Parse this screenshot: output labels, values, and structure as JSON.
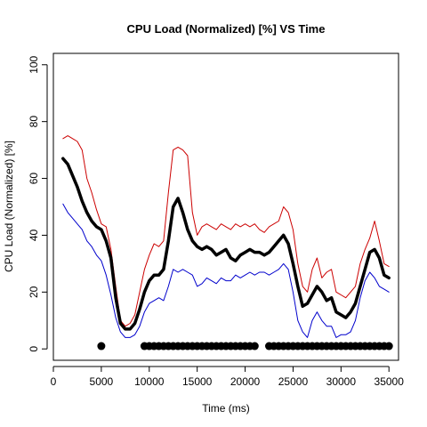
{
  "chart_data": {
    "type": "line",
    "title": "CPU Load (Normalized) [%]  VS  Time",
    "xlabel": "Time (ms)",
    "ylabel": "CPU Load (Normalized) [%]",
    "xlim": [
      0,
      36000
    ],
    "ylim": [
      -4,
      104
    ],
    "xticks": [
      0,
      5000,
      10000,
      15000,
      20000,
      25000,
      30000,
      35000
    ],
    "yticks": [
      0,
      20,
      40,
      60,
      80,
      100
    ],
    "grid": false,
    "legend": "none",
    "series": [
      {
        "color": "#cc0000",
        "style": "thin",
        "x": [
          1000,
          1500,
          2000,
          2500,
          3000,
          3500,
          4000,
          4500,
          5000,
          5500,
          6000,
          6500,
          7000,
          7500,
          8000,
          8500,
          9000,
          9500,
          10000,
          10500,
          11000,
          11500,
          12000,
          12500,
          13000,
          13500,
          14000,
          14500,
          15000,
          15500,
          16000,
          16500,
          17000,
          17500,
          18000,
          18500,
          19000,
          19500,
          20000,
          20500,
          21000,
          21500,
          22000,
          22500,
          23000,
          23500,
          24000,
          24500,
          25000,
          25500,
          26000,
          26500,
          27000,
          27500,
          28000,
          28500,
          29000,
          29500,
          30000,
          30500,
          31000,
          31500,
          32000,
          32500,
          33000,
          33500,
          34000,
          34500,
          35000
        ],
        "y": [
          74,
          75,
          74,
          73,
          70,
          60,
          55,
          49,
          44,
          43,
          35,
          22,
          10,
          8,
          9,
          12,
          20,
          28,
          33,
          37,
          36,
          38,
          55,
          70,
          71,
          70,
          68,
          48,
          40,
          43,
          44,
          43,
          42,
          44,
          43,
          42,
          44,
          43,
          44,
          43,
          44,
          42,
          41,
          43,
          44,
          45,
          50,
          48,
          42,
          30,
          22,
          20,
          28,
          32,
          25,
          27,
          28,
          20,
          19,
          18,
          20,
          22,
          30,
          35,
          39,
          45,
          38,
          30,
          29
        ]
      },
      {
        "color": "#0000cc",
        "style": "thin",
        "x": [
          1000,
          1500,
          2000,
          2500,
          3000,
          3500,
          4000,
          4500,
          5000,
          5500,
          6000,
          6500,
          7000,
          7500,
          8000,
          8500,
          9000,
          9500,
          10000,
          10500,
          11000,
          11500,
          12000,
          12500,
          13000,
          13500,
          14000,
          14500,
          15000,
          15500,
          16000,
          16500,
          17000,
          17500,
          18000,
          18500,
          19000,
          19500,
          20000,
          20500,
          21000,
          21500,
          22000,
          22500,
          23000,
          23500,
          24000,
          24500,
          25000,
          25500,
          26000,
          26500,
          27000,
          27500,
          28000,
          28500,
          29000,
          29500,
          30000,
          30500,
          31000,
          31500,
          32000,
          32500,
          33000,
          33500,
          34000,
          34500,
          35000
        ],
        "y": [
          51,
          48,
          46,
          44,
          42,
          38,
          36,
          33,
          31,
          26,
          19,
          11,
          6,
          4,
          4,
          5,
          8,
          13,
          16,
          17,
          18,
          17,
          22,
          28,
          27,
          28,
          27,
          26,
          22,
          23,
          25,
          24,
          23,
          25,
          24,
          24,
          26,
          25,
          26,
          27,
          26,
          27,
          27,
          26,
          27,
          28,
          30,
          28,
          20,
          10,
          6,
          4,
          10,
          13,
          10,
          8,
          8,
          4,
          5,
          5,
          6,
          10,
          18,
          24,
          27,
          25,
          22,
          21,
          20
        ]
      },
      {
        "color": "#000000",
        "style": "thick",
        "x": [
          1000,
          1500,
          2000,
          2500,
          3000,
          3500,
          4000,
          4500,
          5000,
          5500,
          6000,
          6500,
          7000,
          7500,
          8000,
          8500,
          9000,
          9500,
          10000,
          10500,
          11000,
          11500,
          12000,
          12500,
          13000,
          13500,
          14000,
          14500,
          15000,
          15500,
          16000,
          16500,
          17000,
          17500,
          18000,
          18500,
          19000,
          19500,
          20000,
          20500,
          21000,
          21500,
          22000,
          22500,
          23000,
          23500,
          24000,
          24500,
          25000,
          25500,
          26000,
          26500,
          27000,
          27500,
          28000,
          28500,
          29000,
          29500,
          30000,
          30500,
          31000,
          31500,
          32000,
          32500,
          33000,
          33500,
          34000,
          34500,
          35000
        ],
        "y": [
          67,
          65,
          61,
          57,
          52,
          48,
          45,
          43,
          42,
          38,
          32,
          18,
          9,
          7,
          7,
          9,
          14,
          20,
          24,
          26,
          26,
          28,
          38,
          50,
          53,
          48,
          42,
          38,
          36,
          35,
          36,
          35,
          33,
          34,
          35,
          32,
          31,
          33,
          34,
          35,
          34,
          34,
          33,
          34,
          36,
          38,
          40,
          37,
          30,
          22,
          15,
          16,
          19,
          22,
          20,
          17,
          18,
          13,
          12,
          11,
          13,
          16,
          22,
          28,
          34,
          35,
          32,
          26,
          25
        ]
      },
      {
        "color": "#000000",
        "style": "dots",
        "x": [
          5000,
          9500,
          10000,
          10500,
          11000,
          11500,
          12000,
          12500,
          13000,
          13500,
          14000,
          14500,
          15000,
          15500,
          16000,
          16500,
          17000,
          17500,
          18000,
          18500,
          19000,
          19500,
          20000,
          20500,
          21000,
          22500,
          23000,
          23500,
          24000,
          24500,
          25000,
          25500,
          26000,
          26500,
          27000,
          27500,
          28000,
          28500,
          29000,
          29500,
          30000,
          30500,
          31000,
          31500,
          32000,
          32500,
          33000,
          33500,
          34000,
          34500,
          35000
        ],
        "y": [
          1,
          1,
          1,
          1,
          1,
          1,
          1,
          1,
          1,
          1,
          1,
          1,
          1,
          1,
          1,
          1,
          1,
          1,
          1,
          1,
          1,
          1,
          1,
          1,
          1,
          1,
          1,
          1,
          1,
          1,
          1,
          1,
          1,
          1,
          1,
          1,
          1,
          1,
          1,
          1,
          1,
          1,
          1,
          1,
          1,
          1,
          1,
          1,
          1,
          1,
          1
        ]
      }
    ]
  }
}
